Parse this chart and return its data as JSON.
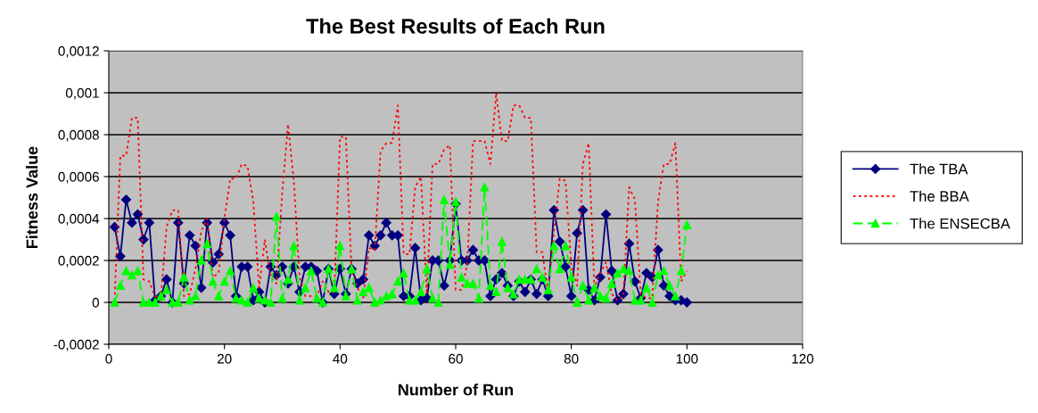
{
  "chart_data": {
    "type": "line",
    "title": "The Best Results of Each Run",
    "xlabel": "Number of Run",
    "ylabel": "Fitness Value",
    "x": [
      1,
      2,
      3,
      4,
      5,
      6,
      7,
      8,
      9,
      10,
      11,
      12,
      13,
      14,
      15,
      16,
      17,
      18,
      19,
      20,
      21,
      22,
      23,
      24,
      25,
      26,
      27,
      28,
      29,
      30,
      31,
      32,
      33,
      34,
      35,
      36,
      37,
      38,
      39,
      40,
      41,
      42,
      43,
      44,
      45,
      46,
      47,
      48,
      49,
      50,
      51,
      52,
      53,
      54,
      55,
      56,
      57,
      58,
      59,
      60,
      61,
      62,
      63,
      64,
      65,
      66,
      67,
      68,
      69,
      70,
      71,
      72,
      73,
      74,
      75,
      76,
      77,
      78,
      79,
      80,
      81,
      82,
      83,
      84,
      85,
      86,
      87,
      88,
      89,
      90,
      91,
      92,
      93,
      94,
      95,
      96,
      97,
      98,
      99,
      100
    ],
    "xlim": [
      0,
      120
    ],
    "xticks": [
      0,
      20,
      40,
      60,
      80,
      100,
      120
    ],
    "ylim": [
      -0.0002,
      0.0012
    ],
    "yticks": [
      {
        "value": -0.0002,
        "label": "-0,0002"
      },
      {
        "value": 0,
        "label": "0"
      },
      {
        "value": 0.0002,
        "label": "0,0002"
      },
      {
        "value": 0.0004,
        "label": "0,0004"
      },
      {
        "value": 0.0006,
        "label": "0,0006"
      },
      {
        "value": 0.0008,
        "label": "0,0008"
      },
      {
        "value": 0.001,
        "label": "0,001"
      },
      {
        "value": 0.0012,
        "label": "0,0012"
      }
    ],
    "grid": "y",
    "legend": "right",
    "series": [
      {
        "name": "The TBA",
        "color": "#000080",
        "marker": "diamond",
        "line_style": "solid",
        "values": [
          0.00036,
          0.00022,
          0.00049,
          0.00038,
          0.00042,
          0.0003,
          0.00038,
          1e-05,
          3e-05,
          0.00011,
          0.0,
          0.00038,
          9e-05,
          0.00032,
          0.00027,
          7e-05,
          0.00038,
          0.00019,
          0.00023,
          0.00038,
          0.00032,
          3e-05,
          0.00017,
          0.00017,
          1e-05,
          5e-05,
          0.0,
          0.00017,
          0.00013,
          0.00017,
          9e-05,
          0.00017,
          5e-05,
          0.00017,
          0.00017,
          0.00015,
          0.0,
          0.00016,
          4e-05,
          0.00016,
          4e-05,
          0.00016,
          9e-05,
          0.00011,
          0.00032,
          0.00027,
          0.00032,
          0.00038,
          0.00032,
          0.00032,
          3e-05,
          3e-05,
          0.00026,
          1e-05,
          2e-05,
          0.0002,
          0.0002,
          8e-05,
          0.0002,
          0.00047,
          0.0002,
          0.0002,
          0.00025,
          0.0002,
          0.0002,
          3e-05,
          0.00011,
          0.00014,
          8e-05,
          3e-05,
          0.0001,
          5e-05,
          0.00011,
          4e-05,
          0.00011,
          3e-05,
          0.00044,
          0.00029,
          0.00017,
          3e-05,
          0.00033,
          0.00044,
          6e-05,
          1e-05,
          0.00012,
          0.00042,
          0.00015,
          1e-05,
          4e-05,
          0.00028,
          0.0001,
          2e-05,
          0.00014,
          0.00012,
          0.00025,
          8e-05,
          3e-05,
          1e-05,
          1e-05,
          0.0
        ]
      },
      {
        "name": "The BBA",
        "color": "#ff0000",
        "marker": "none",
        "line_style": "dotted",
        "values": [
          1e-05,
          0.0007,
          0.0007,
          0.00088,
          0.00088,
          0.00011,
          0.0001,
          3e-05,
          2e-05,
          0.00036,
          0.00044,
          0.00044,
          3e-05,
          4e-05,
          0.00016,
          0.00034,
          0.0004,
          0.00012,
          0.00014,
          0.0004,
          0.00059,
          0.00059,
          0.00066,
          0.00065,
          0.00048,
          7e-05,
          0.0003,
          0.00012,
          9e-05,
          0.00052,
          0.00085,
          0.00058,
          0.00012,
          3e-05,
          3e-05,
          3e-05,
          0.0001,
          5e-05,
          5e-05,
          0.00079,
          0.00079,
          0.00015,
          7e-05,
          2e-05,
          0.00026,
          0.00025,
          0.00072,
          0.00076,
          0.00076,
          0.00094,
          0.00023,
          0.00023,
          0.00055,
          0.0006,
          4e-05,
          0.00066,
          0.00066,
          0.00073,
          0.00075,
          6e-05,
          6e-05,
          0.00018,
          0.00077,
          0.00077,
          0.00077,
          0.00066,
          0.001,
          0.00077,
          0.00077,
          0.00094,
          0.00094,
          0.00088,
          0.00088,
          0.00024,
          0.00024,
          4e-05,
          0.00034,
          0.00059,
          0.00058,
          0.00017,
          8e-05,
          0.00066,
          0.00076,
          7e-05,
          0.00014,
          0.00019,
          4e-05,
          1e-05,
          3e-05,
          0.00055,
          0.00049,
          4e-05,
          2e-05,
          2e-05,
          0.00048,
          0.00066,
          0.00066,
          0.00076,
          0.0001,
          0.00015
        ]
      },
      {
        "name": "The ENSECBA",
        "color": "#00ff00",
        "marker": "triangle",
        "line_style": "dashed",
        "values": [
          0.0,
          8e-05,
          0.00015,
          0.00013,
          0.00015,
          0.0,
          0.0,
          0.0,
          3e-05,
          6e-05,
          0.0,
          0.0,
          0.00012,
          1e-05,
          3e-05,
          0.0002,
          0.00028,
          0.0001,
          3e-05,
          0.0001,
          0.00015,
          2e-05,
          1e-05,
          0.0,
          7e-05,
          2e-05,
          1e-05,
          0.0,
          0.00041,
          2e-05,
          0.00011,
          0.00027,
          1e-05,
          7e-05,
          0.00015,
          2e-05,
          0.0,
          0.00016,
          7e-05,
          0.00027,
          3e-05,
          0.00016,
          1e-05,
          5e-05,
          7e-05,
          0.0,
          1e-05,
          3e-05,
          4e-05,
          0.0001,
          0.00014,
          1e-05,
          1e-05,
          5e-05,
          0.00016,
          2e-05,
          0.0,
          0.00049,
          0.00018,
          0.00048,
          0.00012,
          9e-05,
          9e-05,
          2e-05,
          0.00055,
          8e-05,
          5e-05,
          0.00029,
          7e-05,
          4e-05,
          0.00011,
          0.00011,
          0.00011,
          0.00016,
          0.00012,
          6e-05,
          0.00027,
          0.00016,
          0.00027,
          0.00012,
          0.0,
          8e-05,
          1e-05,
          7e-05,
          3e-05,
          2e-05,
          9e-05,
          0.00014,
          0.00016,
          0.00015,
          1e-05,
          1e-05,
          7e-05,
          0.0,
          0.00013,
          0.00015,
          8e-05,
          3e-05,
          0.00015,
          0.00037
        ]
      }
    ]
  }
}
